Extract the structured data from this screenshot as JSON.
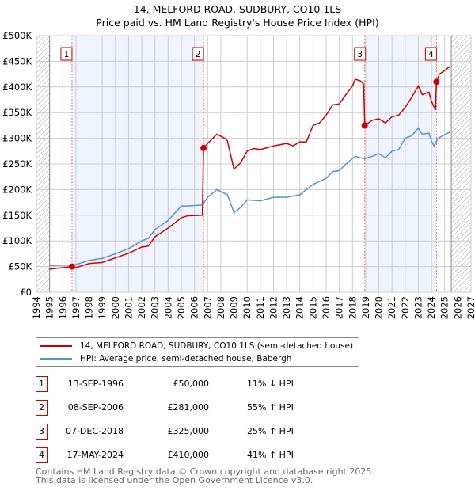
{
  "chart_data": {
    "type": "line",
    "title": "14, MELFORD ROAD, SUDBURY, CO10 1LS",
    "subtitle": "Price paid vs. HM Land Registry's House Price Index (HPI)",
    "xlim": [
      1994,
      2027
    ],
    "ylim": [
      0,
      500000
    ],
    "x_ticks": [
      "1994",
      "1995",
      "1996",
      "1997",
      "1998",
      "1999",
      "2000",
      "2001",
      "2002",
      "2003",
      "2004",
      "2005",
      "2006",
      "2007",
      "2008",
      "2009",
      "2010",
      "2011",
      "2012",
      "2013",
      "2014",
      "2015",
      "2016",
      "2017",
      "2018",
      "2019",
      "2020",
      "2021",
      "2022",
      "2023",
      "2024",
      "2025",
      "2026",
      "2027"
    ],
    "y_ticks": [
      {
        "v": 0,
        "label": "£0"
      },
      {
        "v": 50000,
        "label": "£50K"
      },
      {
        "v": 100000,
        "label": "£100K"
      },
      {
        "v": 150000,
        "label": "£150K"
      },
      {
        "v": 200000,
        "label": "£200K"
      },
      {
        "v": 250000,
        "label": "£250K"
      },
      {
        "v": 300000,
        "label": "£300K"
      },
      {
        "v": 350000,
        "label": "£350K"
      },
      {
        "v": 400000,
        "label": "£400K"
      },
      {
        "v": 450000,
        "label": "£450K"
      },
      {
        "v": 500000,
        "label": "£500K"
      }
    ],
    "grid": true,
    "data_start": 1995,
    "data_end": 2025.5,
    "shaded_ranges": [
      [
        1996.7,
        2006.69
      ],
      [
        2018.93,
        2024.38
      ]
    ],
    "series": [
      {
        "name": "14, MELFORD ROAD, SUDBURY, CO10 1LS (semi-detached house)",
        "color": "#cc0000",
        "x": [
          1995,
          1996.7,
          1997,
          1998,
          1999,
          2000,
          2001,
          2002,
          2002.5,
          2003,
          2004,
          2005,
          2005.5,
          2006.6,
          2006.69,
          2007,
          2007.7,
          2008.3,
          2008.5,
          2009,
          2009.5,
          2010,
          2010.5,
          2011,
          2012,
          2013,
          2013.5,
          2014,
          2014.5,
          2015,
          2015.5,
          2016,
          2016.5,
          2017,
          2017.5,
          2018,
          2018.2,
          2018.6,
          2018.85,
          2018.93,
          2019.5,
          2020,
          2020.5,
          2021,
          2021.5,
          2022,
          2022.5,
          2023,
          2023.3,
          2023.8,
          2024,
          2024.3,
          2024.38,
          2024.6,
          2025,
          2025.4
        ],
        "y": [
          45000,
          50000,
          48000,
          56000,
          58000,
          67000,
          76000,
          88000,
          90000,
          108000,
          125000,
          145000,
          149000,
          150000,
          281000,
          290000,
          308000,
          300000,
          295000,
          240000,
          252000,
          275000,
          280000,
          278000,
          285000,
          290000,
          285000,
          293000,
          293000,
          325000,
          330000,
          345000,
          365000,
          367000,
          385000,
          402000,
          415000,
          412000,
          405000,
          325000,
          335000,
          338000,
          330000,
          342000,
          345000,
          360000,
          380000,
          402000,
          385000,
          390000,
          372000,
          355000,
          410000,
          425000,
          432000,
          440000
        ]
      },
      {
        "name": "HPI: Average price, semi-detached house, Babergh",
        "color": "#5b8fd4",
        "x": [
          1995,
          1996.7,
          1997,
          1998,
          1999,
          2000,
          2001,
          2002,
          2002.5,
          2003,
          2004,
          2005,
          2005.5,
          2006.6,
          2007,
          2007.7,
          2008.5,
          2009,
          2009.5,
          2010,
          2011,
          2012,
          2013,
          2014,
          2015,
          2016,
          2016.5,
          2017,
          2017.5,
          2018.2,
          2018.9,
          2019.5,
          2020,
          2020.5,
          2021,
          2021.5,
          2022,
          2022.5,
          2023,
          2023.3,
          2023.8,
          2024,
          2024.2,
          2024.5,
          2025,
          2025.4
        ],
        "y": [
          52000,
          53000,
          54000,
          62000,
          66000,
          75000,
          85000,
          100000,
          105000,
          122000,
          140000,
          168000,
          168000,
          170000,
          185000,
          200000,
          190000,
          155000,
          165000,
          180000,
          178000,
          185000,
          185000,
          190000,
          210000,
          222000,
          235000,
          237000,
          250000,
          265000,
          260000,
          265000,
          270000,
          262000,
          275000,
          278000,
          300000,
          305000,
          320000,
          308000,
          310000,
          295000,
          285000,
          300000,
          307000,
          312000
        ]
      }
    ],
    "sales": [
      {
        "label": "1",
        "x": 1996.7,
        "y": 50000,
        "date": "13-SEP-1996",
        "price": "£50,000",
        "hpi": "11% ↓ HPI"
      },
      {
        "label": "2",
        "x": 2006.69,
        "y": 281000,
        "date": "08-SEP-2006",
        "price": "£281,000",
        "hpi": "55% ↑ HPI"
      },
      {
        "label": "3",
        "x": 2018.93,
        "y": 325000,
        "date": "07-DEC-2018",
        "price": "£325,000",
        "hpi": "25% ↑ HPI"
      },
      {
        "label": "4",
        "x": 2024.38,
        "y": 410000,
        "date": "17-MAY-2024",
        "price": "£410,000",
        "hpi": "41% ↑ HPI"
      }
    ]
  },
  "footer": {
    "line1": "Contains HM Land Registry data © Crown copyright and database right 2025.",
    "line2": "This data is licensed under the Open Government Licence v3.0."
  }
}
